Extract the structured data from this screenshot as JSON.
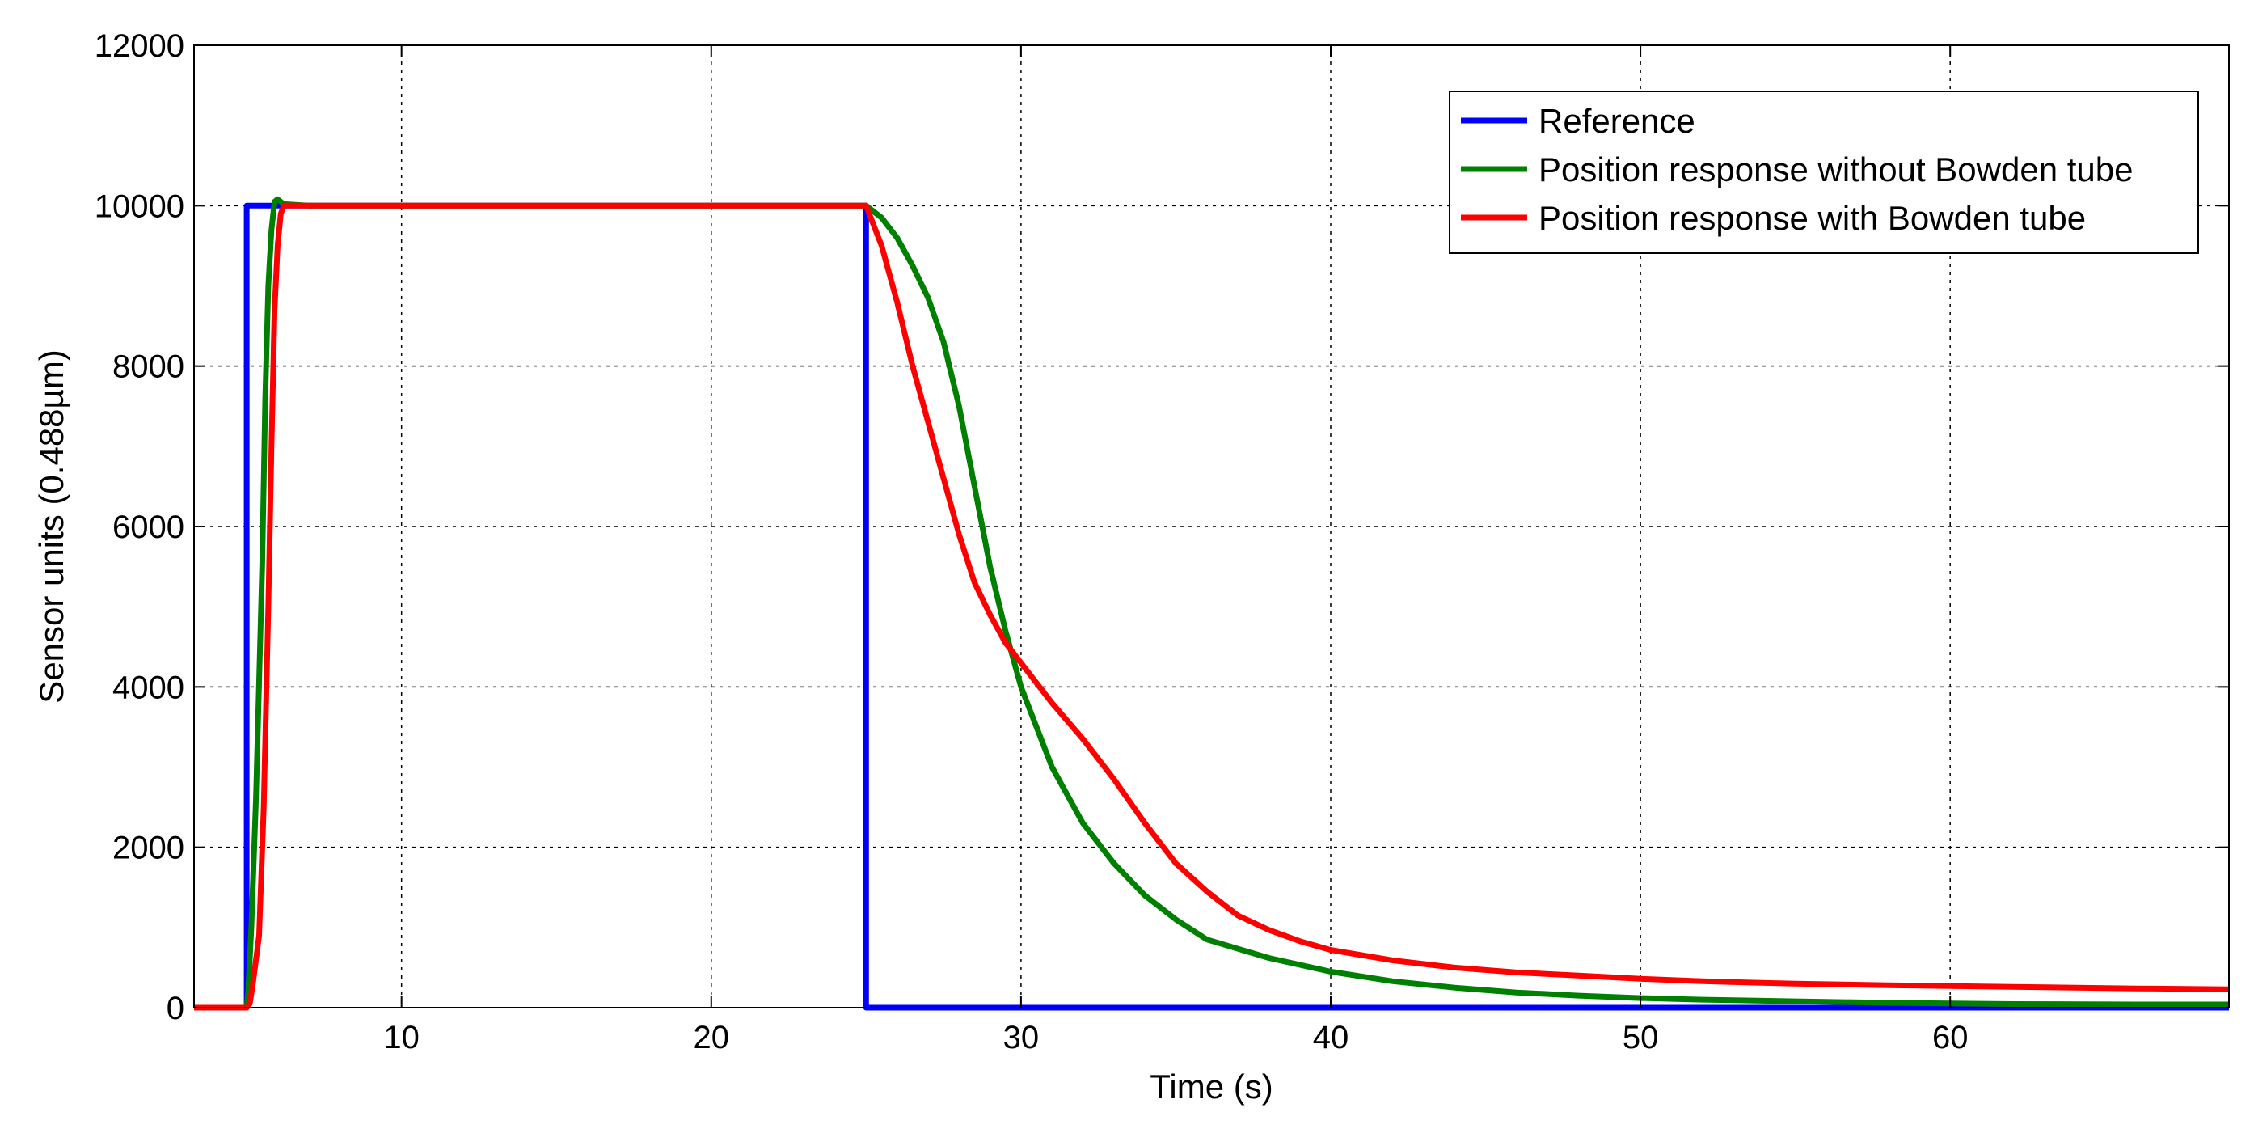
{
  "chart_data": {
    "type": "line",
    "title": "",
    "xlabel": "Time (s)",
    "ylabel": "Sensor units (0.488µm)",
    "xlim": [
      3.3,
      69
    ],
    "ylim": [
      0,
      12000
    ],
    "xticks": [
      10,
      20,
      30,
      40,
      50,
      60
    ],
    "yticks": [
      0,
      2000,
      4000,
      6000,
      8000,
      10000,
      12000
    ],
    "grid": true,
    "legend_position": "top-right",
    "series": [
      {
        "name": "Reference",
        "color": "#0000ff",
        "points": [
          [
            3.3,
            0
          ],
          [
            5.0,
            0
          ],
          [
            5.0,
            10000
          ],
          [
            25.0,
            10000
          ],
          [
            25.0,
            0
          ],
          [
            69,
            0
          ]
        ]
      },
      {
        "name": "Position response without Bowden tube",
        "color": "#008000",
        "points": [
          [
            3.3,
            0
          ],
          [
            5.0,
            0
          ],
          [
            5.05,
            200
          ],
          [
            5.15,
            1000
          ],
          [
            5.3,
            2600
          ],
          [
            5.5,
            5500
          ],
          [
            5.6,
            7600
          ],
          [
            5.7,
            9000
          ],
          [
            5.8,
            9700
          ],
          [
            5.9,
            10050
          ],
          [
            6.0,
            10080
          ],
          [
            6.2,
            10020
          ],
          [
            7,
            10000
          ],
          [
            25.0,
            10000
          ],
          [
            25.5,
            9850
          ],
          [
            26,
            9600
          ],
          [
            26.5,
            9250
          ],
          [
            27,
            8850
          ],
          [
            27.5,
            8300
          ],
          [
            28,
            7500
          ],
          [
            28.5,
            6500
          ],
          [
            29,
            5500
          ],
          [
            29.5,
            4700
          ],
          [
            30,
            4000
          ],
          [
            31,
            3000
          ],
          [
            32,
            2300
          ],
          [
            33,
            1800
          ],
          [
            34,
            1400
          ],
          [
            35,
            1100
          ],
          [
            36,
            850
          ],
          [
            38,
            620
          ],
          [
            40,
            450
          ],
          [
            42,
            330
          ],
          [
            44,
            250
          ],
          [
            46,
            190
          ],
          [
            48,
            150
          ],
          [
            50,
            120
          ],
          [
            52,
            100
          ],
          [
            55,
            80
          ],
          [
            58,
            60
          ],
          [
            62,
            45
          ],
          [
            66,
            40
          ],
          [
            69,
            40
          ]
        ]
      },
      {
        "name": "Position response with Bowden tube",
        "color": "#ff0000",
        "points": [
          [
            3.3,
            0
          ],
          [
            5.0,
            0
          ],
          [
            5.1,
            50
          ],
          [
            5.2,
            300
          ],
          [
            5.4,
            900
          ],
          [
            5.55,
            2500
          ],
          [
            5.7,
            5000
          ],
          [
            5.8,
            7000
          ],
          [
            5.9,
            8700
          ],
          [
            6.0,
            9500
          ],
          [
            6.1,
            9900
          ],
          [
            6.2,
            10000
          ],
          [
            7,
            10000
          ],
          [
            25.0,
            10000
          ],
          [
            25.5,
            9500
          ],
          [
            26,
            8800
          ],
          [
            26.5,
            8000
          ],
          [
            27,
            7300
          ],
          [
            27.5,
            6600
          ],
          [
            28,
            5900
          ],
          [
            28.5,
            5300
          ],
          [
            29,
            4900
          ],
          [
            29.5,
            4550
          ],
          [
            30,
            4300
          ],
          [
            31,
            3800
          ],
          [
            32,
            3350
          ],
          [
            33,
            2850
          ],
          [
            34,
            2300
          ],
          [
            35,
            1800
          ],
          [
            36,
            1450
          ],
          [
            37,
            1150
          ],
          [
            38,
            970
          ],
          [
            39,
            830
          ],
          [
            40,
            720
          ],
          [
            42,
            590
          ],
          [
            44,
            500
          ],
          [
            46,
            440
          ],
          [
            48,
            400
          ],
          [
            50,
            360
          ],
          [
            52,
            330
          ],
          [
            55,
            300
          ],
          [
            58,
            280
          ],
          [
            62,
            260
          ],
          [
            66,
            240
          ],
          [
            69,
            230
          ]
        ]
      }
    ]
  }
}
